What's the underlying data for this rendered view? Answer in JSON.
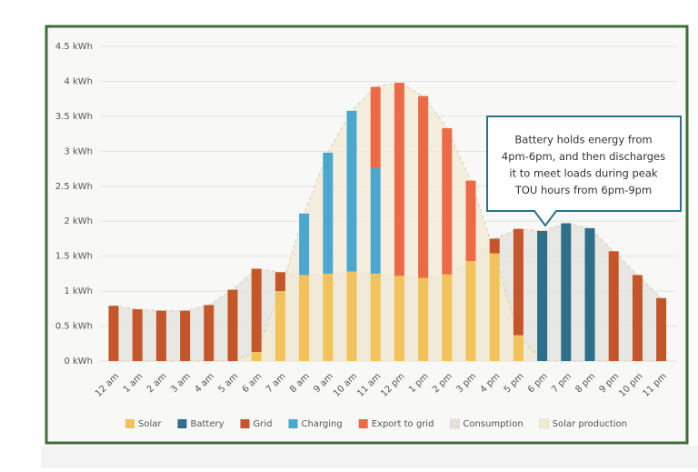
{
  "chart_data": {
    "type": "bar",
    "categories": [
      "12 am",
      "1 am",
      "2 am",
      "3 am",
      "4 am",
      "5 am",
      "6 am",
      "7 am",
      "8 am",
      "9 am",
      "10 am",
      "11 am",
      "12 pm",
      "1 pm",
      "2 pm",
      "3 pm",
      "4 pm",
      "5 pm",
      "6 pm",
      "7 pm",
      "8 pm",
      "9 pm",
      "10 pm",
      "11 pm"
    ],
    "series": [
      {
        "name": "Solar",
        "color": "#f2c35b",
        "values": [
          null,
          null,
          null,
          null,
          null,
          null,
          0.13,
          1.0,
          1.23,
          1.25,
          1.28,
          1.25,
          1.22,
          1.19,
          1.24,
          1.43,
          1.54,
          0.37,
          null,
          null,
          null,
          null,
          null,
          null
        ]
      },
      {
        "name": "Battery",
        "color": "#2e6f8a",
        "values": [
          null,
          null,
          null,
          null,
          null,
          null,
          null,
          null,
          null,
          null,
          null,
          null,
          null,
          null,
          null,
          null,
          null,
          null,
          1.86,
          1.97,
          1.9,
          null,
          null,
          null
        ]
      },
      {
        "name": "Grid",
        "color": "#c5562a",
        "values": [
          0.79,
          0.74,
          0.72,
          0.72,
          0.8,
          1.02,
          1.19,
          0.27,
          null,
          null,
          null,
          null,
          null,
          null,
          null,
          null,
          0.21,
          1.52,
          null,
          null,
          null,
          1.57,
          1.23,
          0.9
        ]
      },
      {
        "name": "Charging",
        "color": "#4aa8cf",
        "values": [
          null,
          null,
          null,
          null,
          null,
          null,
          null,
          null,
          0.88,
          1.73,
          2.3,
          1.51,
          null,
          null,
          null,
          null,
          null,
          null,
          null,
          null,
          null,
          null,
          null,
          null
        ]
      },
      {
        "name": "Export to grid",
        "color": "#ec6a45",
        "values": [
          null,
          null,
          null,
          null,
          null,
          null,
          null,
          null,
          null,
          null,
          null,
          1.16,
          2.76,
          2.6,
          2.09,
          1.15,
          null,
          null,
          null,
          null,
          null,
          null,
          null,
          null
        ]
      },
      {
        "name": "Consumption",
        "type": "area",
        "color": "#e2e1dc",
        "values": [
          0.79,
          0.74,
          0.72,
          0.72,
          0.8,
          1.02,
          1.32,
          1.27,
          1.23,
          1.25,
          1.28,
          1.25,
          1.22,
          1.19,
          1.24,
          1.43,
          1.75,
          1.89,
          1.86,
          1.97,
          1.9,
          1.57,
          1.23,
          0.9
        ]
      },
      {
        "name": "Solar production",
        "type": "area",
        "color": "#f4ebd5",
        "values": [
          0,
          0,
          0,
          0,
          0,
          0,
          0.13,
          1.0,
          2.11,
          2.98,
          3.58,
          3.92,
          3.98,
          3.79,
          3.33,
          2.58,
          1.54,
          0.37,
          0,
          0,
          0,
          0,
          0,
          0
        ]
      }
    ],
    "ylim": [
      0,
      4.5
    ],
    "yticks": [
      {
        "value": 0,
        "label": "0 kWh"
      },
      {
        "value": 0.5,
        "label": "0.5 kWh"
      },
      {
        "value": 1,
        "label": "1 kWh"
      },
      {
        "value": 1.5,
        "label": "1.5 kWh"
      },
      {
        "value": 2,
        "label": "2 kWh"
      },
      {
        "value": 2.5,
        "label": "2.5 kWh"
      },
      {
        "value": 3,
        "label": "3 kWh"
      },
      {
        "value": 3.5,
        "label": "3.5 kWh"
      },
      {
        "value": 4,
        "label": "4 kWh"
      },
      {
        "value": 4.5,
        "label": "4.5 kWh"
      }
    ],
    "grid": true,
    "annotation": [
      "Battery holds energy from",
      "4pm-6pm, and then discharges",
      "it to meet loads during peak",
      "TOU hours from 6pm-9pm"
    ]
  }
}
